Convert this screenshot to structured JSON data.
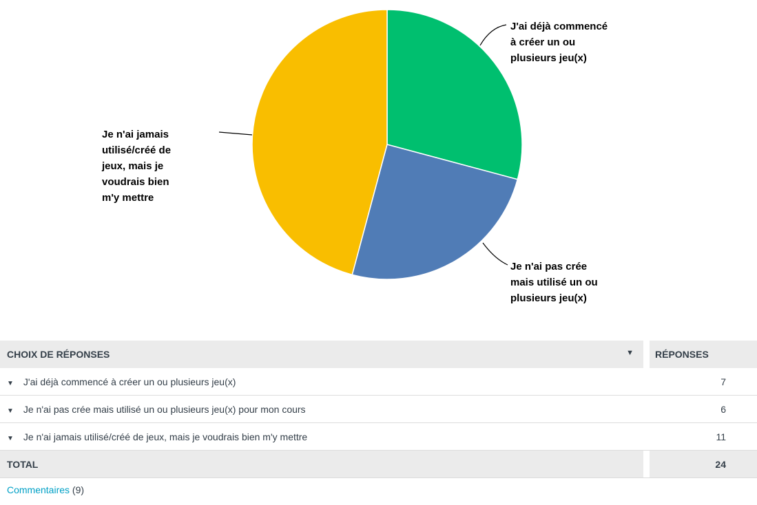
{
  "chart_data": {
    "type": "pie",
    "slices": [
      {
        "label": "J'ai déjà commencé à créer un ou plusieurs jeu(x)",
        "callout_lines": [
          "J'ai déjà commencé",
          "à créer un ou",
          "plusieurs jeu(x)"
        ],
        "value": 7,
        "color": "#00bf6f"
      },
      {
        "label": "Je n'ai pas crée mais utilisé un ou plusieurs jeu(x)",
        "callout_lines": [
          "Je n'ai pas crée",
          "mais utilisé un ou",
          "plusieurs jeu(x)"
        ],
        "value": 6,
        "color": "#507cb6"
      },
      {
        "label": "Je n'ai jamais utilisé/créé de jeux, mais je voudrais bien m'y mettre",
        "callout_lines": [
          "Je n'ai jamais",
          "utilisé/créé de",
          "jeux, mais je",
          "voudrais bien",
          "m'y mettre"
        ],
        "value": 11,
        "color": "#f9be00"
      }
    ]
  },
  "table": {
    "header_choice": "CHOIX DE RÉPONSES",
    "header_count": "RÉPONSES",
    "sort_icon": "caret-down-icon",
    "rows": [
      {
        "label": "J'ai déjà commencé à créer un ou plusieurs jeu(x)",
        "count": "7"
      },
      {
        "label": "Je n'ai pas crée mais utilisé un ou plusieurs jeu(x) pour mon cours",
        "count": "6"
      },
      {
        "label": "Je n'ai jamais utilisé/créé de jeux, mais je voudrais bien m'y mettre",
        "count": "11"
      }
    ],
    "total_label": "TOTAL",
    "total_count": "24"
  },
  "comments": {
    "link_text": "Commentaires",
    "count_text": "(9)"
  }
}
